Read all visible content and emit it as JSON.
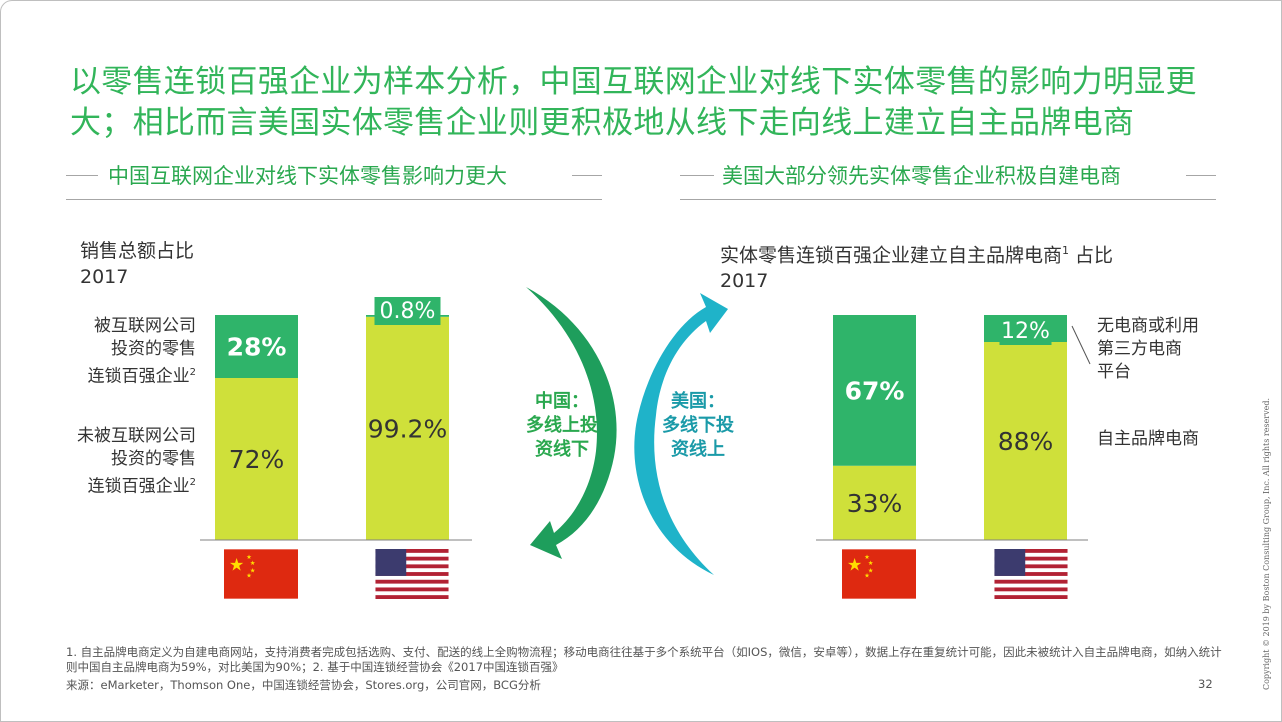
{
  "title": "以零售连锁百强企业为样本分析，中国互联网企业对线下实体零售的影响力明显更大；相比而言美国实体零售企业则更积极地从线下走向线上建立自主品牌电商",
  "left_panel": {
    "heading": "中国互联网企业对线下实体零售影响力更大",
    "measure": "销售总额占比",
    "year": "2017",
    "row_labels": [
      {
        "lines": [
          "被互联网公司",
          "投资的零售",
          "连锁百强企业"
        ],
        "sup": "2"
      },
      {
        "lines": [
          "未被互联网公司",
          "投资的零售",
          "连锁百强企业"
        ],
        "sup": "2"
      }
    ]
  },
  "right_panel": {
    "heading": "美国大部分领先实体零售企业积极自建电商",
    "measure": "实体零售连锁百强企业建立自主品牌电商",
    "measure_sup": "1",
    "measure_suffix": " 占比",
    "year": "2017",
    "legend_top": [
      "无电商或利用",
      "第三方电商",
      "平台"
    ],
    "legend_bottom": "自主品牌电商"
  },
  "arrows": {
    "china_lines": [
      "中国：",
      "多线上投",
      "资线下"
    ],
    "us_lines": [
      "美国：",
      "多线下投",
      "资线上"
    ]
  },
  "chart_data": [
    {
      "type": "bar",
      "stacked": true,
      "title": "销售总额占比",
      "subtitle": "2017",
      "categories": [
        "中国",
        "美国"
      ],
      "series": [
        {
          "name": "未被互联网公司投资的零售连锁百强企业",
          "values": [
            72,
            99.2
          ],
          "labels": [
            "72%",
            "99.2%"
          ]
        },
        {
          "name": "被互联网公司投资的零售连锁百强企业",
          "values": [
            28,
            0.8
          ],
          "labels": [
            "28%",
            "0.8%"
          ]
        }
      ],
      "ylim": [
        0,
        100
      ]
    },
    {
      "type": "bar",
      "stacked": true,
      "title": "实体零售连锁百强企业建立自主品牌电商占比",
      "subtitle": "2017",
      "categories": [
        "中国",
        "美国"
      ],
      "series": [
        {
          "name": "自主品牌电商",
          "values": [
            33,
            88
          ],
          "labels": [
            "33%",
            "88%"
          ]
        },
        {
          "name": "无电商或利用第三方电商平台",
          "values": [
            67,
            12
          ],
          "labels": [
            "67%",
            "12%"
          ]
        }
      ],
      "ylim": [
        0,
        100
      ]
    }
  ],
  "colors": {
    "green": "#2fb46a",
    "lime": "#cfe03a",
    "title_green": "#32b55a",
    "arrow_green": "#1e9e5c",
    "arrow_teal": "#1fb3c9",
    "china_red": "#de2910",
    "china_star": "#ffde00"
  },
  "icons": [
    "china-flag-icon",
    "us-flag-icon",
    "curved-arrow-down-icon",
    "curved-arrow-up-icon"
  ],
  "footnotes": {
    "line1": "1. 自主品牌电商定义为自建电商网站，支持消费者完成包括选购、支付、配送的线上全购物流程；移动电商往往基于多个系统平台（如IOS，微信，安卓等），数据上存在重复统计可能，因此未被统计入自主品牌电商，如纳入统计则中国自主品牌电商为59%，对比美国为90%；2. 基于中国连锁经营协会《2017中国连锁百强》",
    "source": "来源：eMarketer，Thomson One，中国连锁经营协会，Stores.org，公司官网，BCG分析",
    "page": "32",
    "copyright": "Copyright © 2019 by Boston Consulting Group, Inc. All rights reserved."
  }
}
